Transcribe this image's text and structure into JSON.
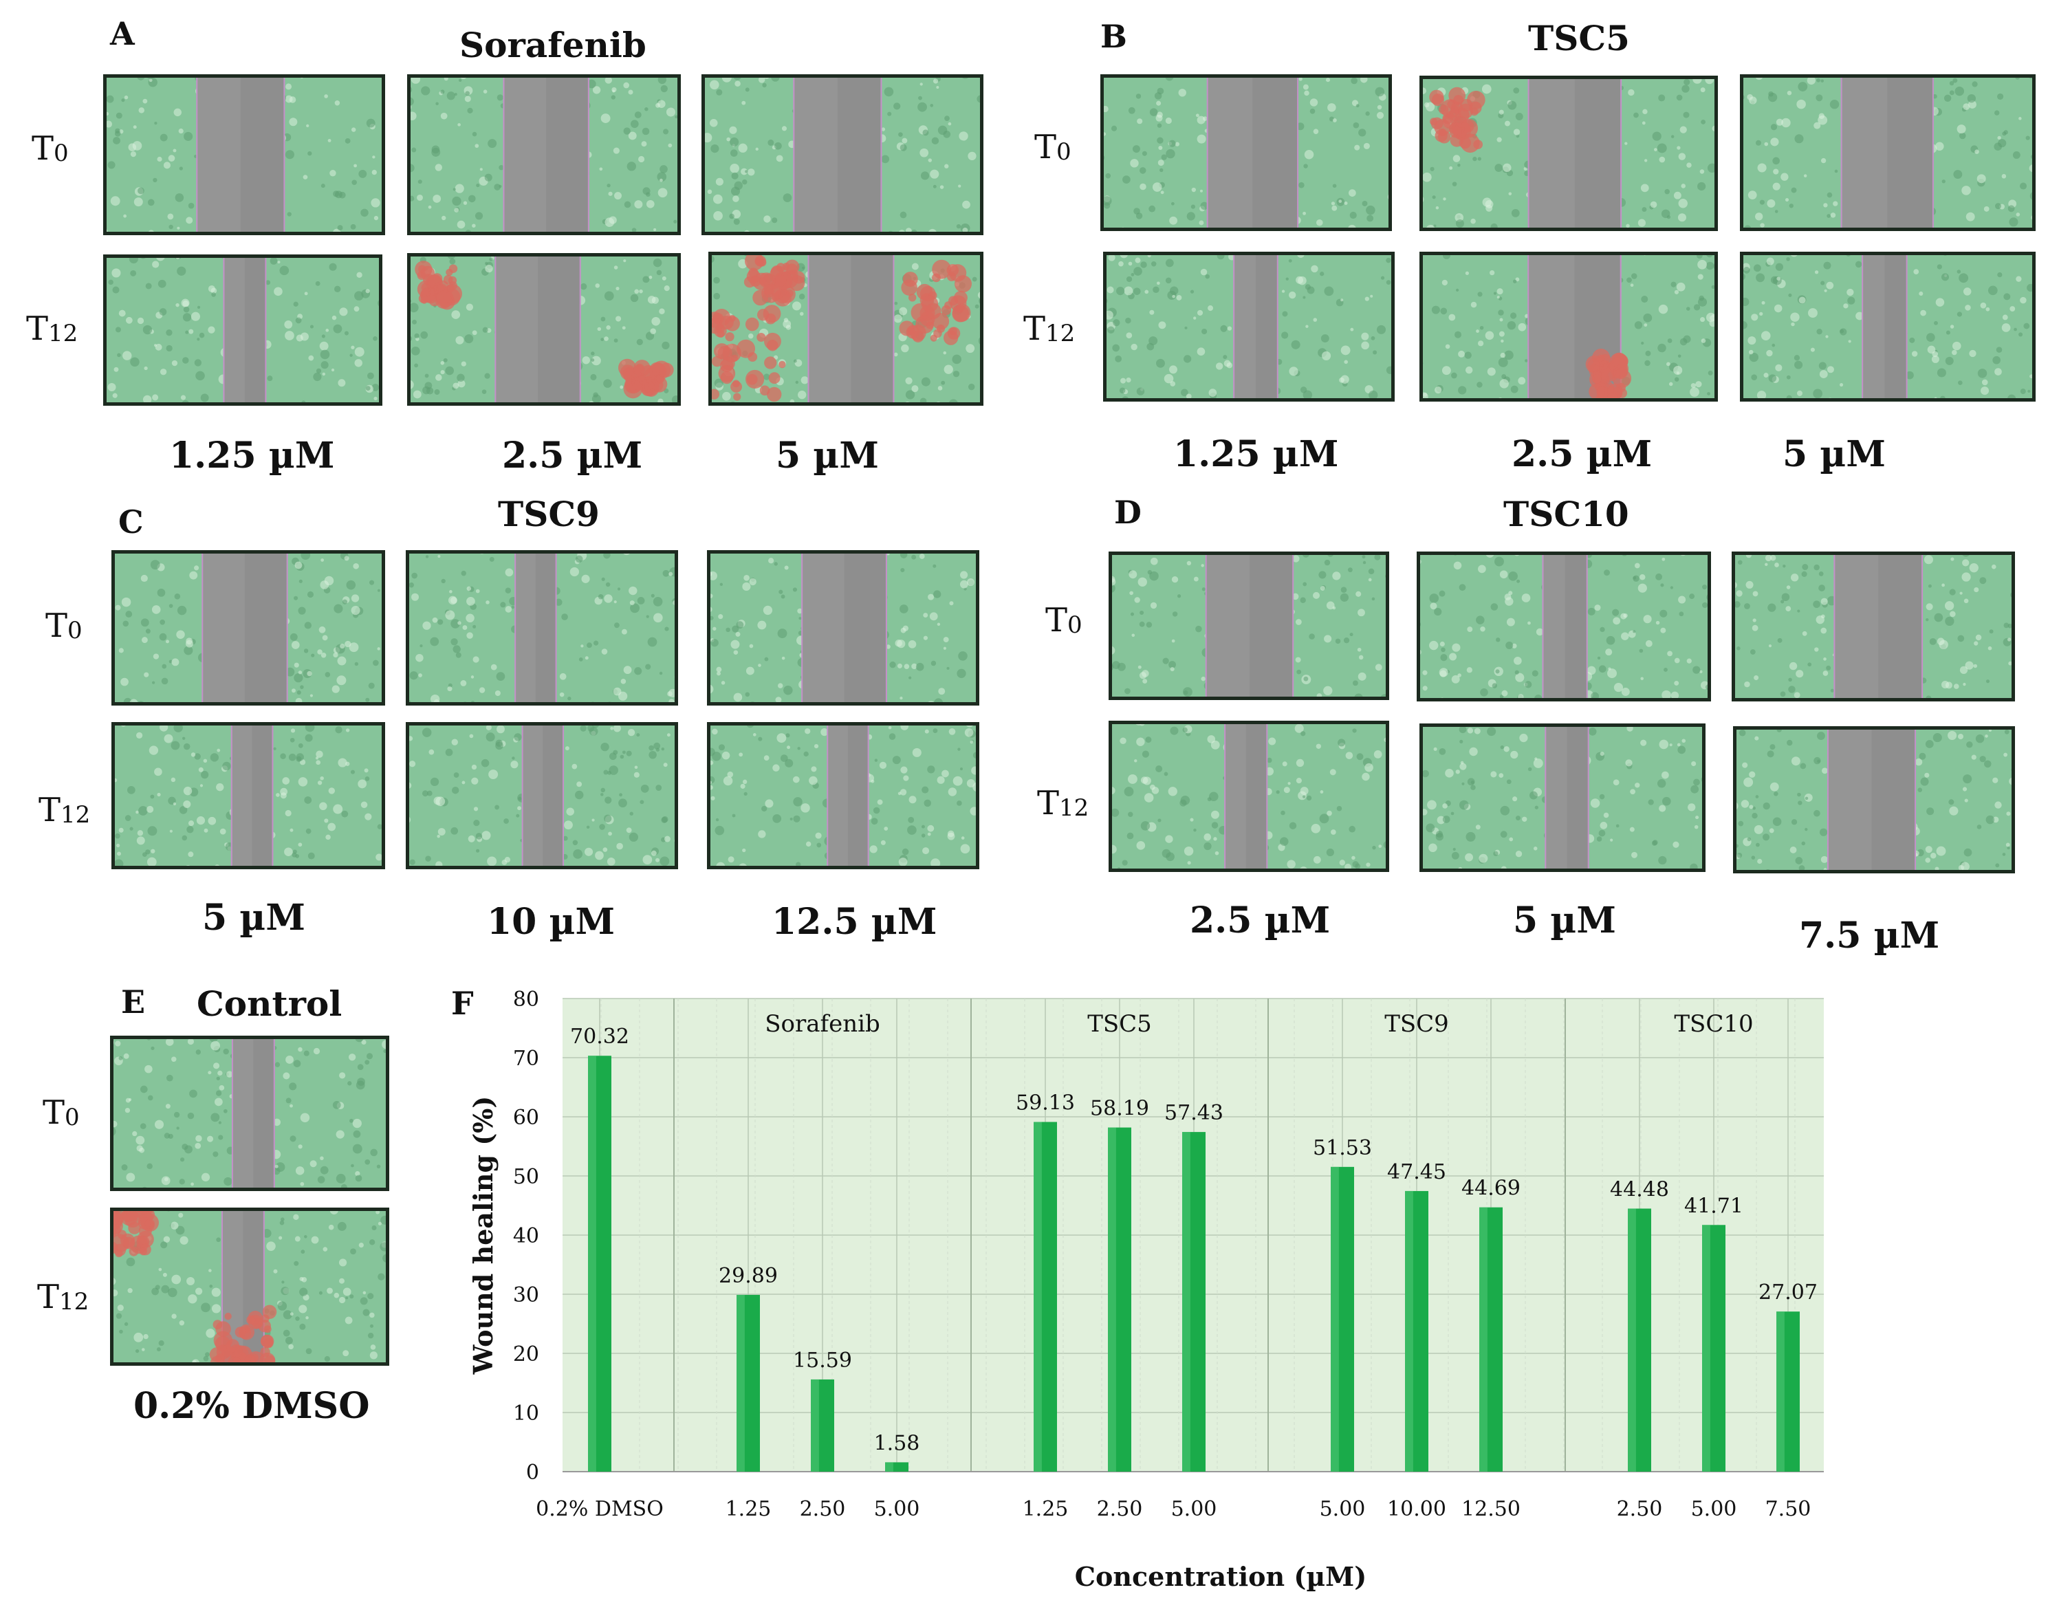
{
  "panels": {
    "A": {
      "letter": "A",
      "title": "Sorafenib",
      "t0": "T",
      "t0_sub": "0",
      "t12": "T",
      "t12_sub": "12",
      "concs": [
        "1.25 µM",
        "2.5 µM",
        "5 µM"
      ]
    },
    "B": {
      "letter": "B",
      "title": "TSC5",
      "t0": "T",
      "t0_sub": "0",
      "t12": "T",
      "t12_sub": "12",
      "concs": [
        "1.25 µM",
        "2.5 µM",
        "5 µM"
      ]
    },
    "C": {
      "letter": "C",
      "title": "TSC9",
      "t0": "T",
      "t0_sub": "0",
      "t12": "T",
      "t12_sub": "12",
      "concs": [
        "5 µM",
        "10 µM",
        "12.5 µM"
      ]
    },
    "D": {
      "letter": "D",
      "title": "TSC10",
      "t0": "T",
      "t0_sub": "0",
      "t12": "T",
      "t12_sub": "12",
      "concs": [
        "2.5 µM",
        "5 µM",
        "7.5 µM"
      ]
    },
    "E": {
      "letter": "E",
      "title": "Control",
      "t0": "T",
      "t0_sub": "0",
      "t12": "T",
      "t12_sub": "12",
      "concs": [
        "0.2% DMSO"
      ]
    },
    "F": {
      "letter": "F"
    }
  },
  "colors": {
    "cells": "#86c49a",
    "gap": "#8e8e8e",
    "red": "#d96b5f",
    "bar": "#1aab4a",
    "plotbg": "#e1f0dc"
  },
  "chart_data": {
    "type": "bar",
    "ylabel": "Wound healing (%)",
    "xlabel": "Concentration (µM)",
    "ylim": [
      0,
      80
    ],
    "yticks": [
      "0",
      "10",
      "20",
      "30",
      "40",
      "50",
      "60",
      "70",
      "80"
    ],
    "groups": [
      {
        "name": "",
        "categories": [
          "0.2% DMSO"
        ],
        "values": [
          70.32
        ],
        "labels": [
          "70.32"
        ]
      },
      {
        "name": "Sorafenib",
        "categories": [
          "1.25",
          "2.50",
          "5.00"
        ],
        "values": [
          29.89,
          15.59,
          1.58
        ],
        "labels": [
          "29.89",
          "15.59",
          "1.58"
        ]
      },
      {
        "name": "TSC5",
        "categories": [
          "1.25",
          "2.50",
          "5.00"
        ],
        "values": [
          59.13,
          58.19,
          57.43
        ],
        "labels": [
          "59.13",
          "58.19",
          "57.43"
        ]
      },
      {
        "name": "TSC9",
        "categories": [
          "5.00",
          "10.00",
          "12.50"
        ],
        "values": [
          51.53,
          47.45,
          44.69
        ],
        "labels": [
          "51.53",
          "47.45",
          "44.69"
        ]
      },
      {
        "name": "TSC10",
        "categories": [
          "2.50",
          "5.00",
          "7.50"
        ],
        "values": [
          44.48,
          41.71,
          27.07
        ],
        "labels": [
          "44.48",
          "41.71",
          "27.07"
        ]
      }
    ]
  }
}
